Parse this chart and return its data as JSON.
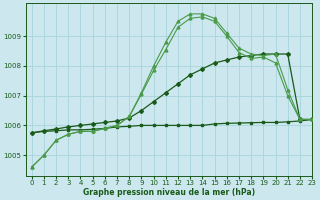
{
  "title": "Graphe pression niveau de la mer (hPa)",
  "background_color": "#cce8ee",
  "grid_color": "#a8d4dc",
  "line_color_light": "#4a9a4a",
  "line_color_dark": "#1a5a1a",
  "xlim": [
    -0.5,
    23
  ],
  "ylim": [
    1004.3,
    1010.1
  ],
  "yticks": [
    1005,
    1006,
    1007,
    1008,
    1009
  ],
  "xticks": [
    0,
    1,
    2,
    3,
    4,
    5,
    6,
    7,
    8,
    9,
    10,
    11,
    12,
    13,
    14,
    15,
    16,
    17,
    18,
    19,
    20,
    21,
    22,
    23
  ],
  "series1_x": [
    0,
    1,
    2,
    3,
    4,
    5,
    6,
    7,
    8,
    9,
    10,
    11,
    12,
    13,
    14,
    15,
    16,
    17,
    18,
    19,
    20,
    21,
    22,
    23
  ],
  "series1_y": [
    1004.6,
    1005.0,
    1005.5,
    1005.7,
    1005.8,
    1005.8,
    1005.9,
    1006.0,
    1006.3,
    1007.1,
    1008.0,
    1008.8,
    1009.5,
    1009.75,
    1009.75,
    1009.6,
    1009.1,
    1008.6,
    1008.4,
    1008.35,
    1008.4,
    1007.2,
    1006.2,
    1006.2
  ],
  "series2_x": [
    0,
    1,
    2,
    3,
    4,
    5,
    6,
    7,
    8,
    9,
    10,
    11,
    12,
    13,
    14,
    15,
    16,
    17,
    18,
    19,
    20,
    21,
    22,
    23
  ],
  "series2_y": [
    1004.6,
    1005.0,
    1005.5,
    1005.7,
    1005.8,
    1005.8,
    1005.9,
    1006.0,
    1006.3,
    1007.05,
    1007.85,
    1008.55,
    1009.3,
    1009.6,
    1009.65,
    1009.5,
    1009.0,
    1008.45,
    1008.25,
    1008.3,
    1008.1,
    1007.0,
    1006.2,
    1006.2
  ],
  "series3_x": [
    0,
    1,
    2,
    3,
    4,
    5,
    6,
    7,
    8,
    9,
    10,
    11,
    12,
    13,
    14,
    15,
    16,
    17,
    18,
    19,
    20,
    21,
    22,
    23
  ],
  "series3_y": [
    1005.75,
    1005.8,
    1005.82,
    1005.85,
    1005.85,
    1005.87,
    1005.9,
    1005.95,
    1005.97,
    1006.0,
    1006.0,
    1006.0,
    1006.0,
    1006.0,
    1006.0,
    1006.05,
    1006.07,
    1006.08,
    1006.09,
    1006.1,
    1006.1,
    1006.12,
    1006.15,
    1006.2
  ],
  "series4_x": [
    0,
    1,
    2,
    3,
    4,
    5,
    6,
    7,
    8,
    9,
    10,
    11,
    12,
    13,
    14,
    15,
    16,
    17,
    18,
    19,
    20,
    21,
    22,
    23
  ],
  "series4_y": [
    1005.75,
    1005.82,
    1005.88,
    1005.95,
    1006.0,
    1006.05,
    1006.1,
    1006.15,
    1006.25,
    1006.5,
    1006.8,
    1007.1,
    1007.4,
    1007.7,
    1007.9,
    1008.1,
    1008.2,
    1008.3,
    1008.35,
    1008.4,
    1008.4,
    1008.4,
    1006.2,
    1006.2
  ]
}
